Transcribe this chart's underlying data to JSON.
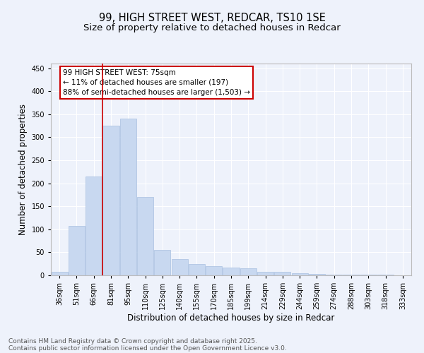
{
  "title_line1": "99, HIGH STREET WEST, REDCAR, TS10 1SE",
  "title_line2": "Size of property relative to detached houses in Redcar",
  "xlabel": "Distribution of detached houses by size in Redcar",
  "ylabel": "Number of detached properties",
  "categories": [
    "36sqm",
    "51sqm",
    "66sqm",
    "81sqm",
    "95sqm",
    "110sqm",
    "125sqm",
    "140sqm",
    "155sqm",
    "170sqm",
    "185sqm",
    "199sqm",
    "214sqm",
    "229sqm",
    "244sqm",
    "259sqm",
    "274sqm",
    "288sqm",
    "303sqm",
    "318sqm",
    "333sqm"
  ],
  "values": [
    7,
    107,
    215,
    325,
    340,
    170,
    55,
    35,
    25,
    20,
    17,
    15,
    8,
    8,
    5,
    3,
    1,
    1,
    1,
    1,
    0
  ],
  "bar_color": "#c8d8f0",
  "bar_edge_color": "#a8c0e0",
  "red_line_color": "#cc0000",
  "red_line_x": 2.5,
  "annotation_text": "99 HIGH STREET WEST: 75sqm\n← 11% of detached houses are smaller (197)\n88% of semi-detached houses are larger (1,503) →",
  "annotation_box_facecolor": "#ffffff",
  "annotation_box_edgecolor": "#cc0000",
  "background_color": "#eef2fb",
  "ylim": [
    0,
    460
  ],
  "yticks": [
    0,
    50,
    100,
    150,
    200,
    250,
    300,
    350,
    400,
    450
  ],
  "footer_line1": "Contains HM Land Registry data © Crown copyright and database right 2025.",
  "footer_line2": "Contains public sector information licensed under the Open Government Licence v3.0.",
  "title_fontsize": 10.5,
  "subtitle_fontsize": 9.5,
  "tick_fontsize": 7,
  "xlabel_fontsize": 8.5,
  "ylabel_fontsize": 8.5,
  "annotation_fontsize": 7.5,
  "footer_fontsize": 6.5
}
